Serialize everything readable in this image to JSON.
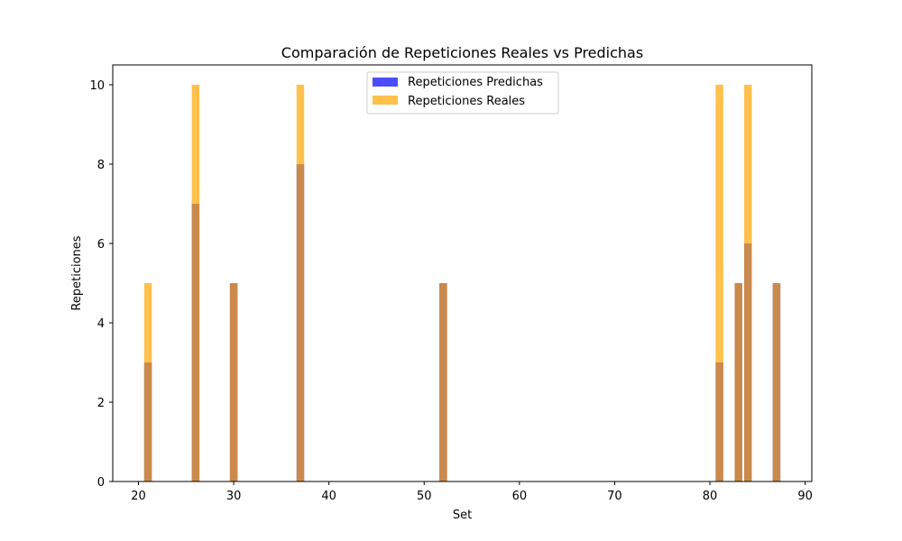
{
  "chart_data": {
    "type": "bar",
    "title": "Comparación de Repeticiones Reales vs Predichas",
    "xlabel": "Set",
    "ylabel": "Repeticiones",
    "xlim": [
      17.3,
      90.7
    ],
    "ylim": [
      0,
      10.5
    ],
    "xticks": [
      20,
      30,
      40,
      50,
      60,
      70,
      80,
      90
    ],
    "yticks": [
      0,
      2,
      4,
      6,
      8,
      10
    ],
    "grid": false,
    "legend_position": "top-center",
    "bar_width": 0.8,
    "x": [
      21,
      26,
      30,
      37,
      52,
      81,
      83,
      84,
      87
    ],
    "series": [
      {
        "name": "Repeticiones Predichas",
        "color": "#0000ff",
        "alpha": 0.7,
        "values": [
          3,
          7,
          5,
          8,
          5,
          3,
          5,
          6,
          5
        ]
      },
      {
        "name": "Repeticiones Reales",
        "color": "#ffa500",
        "alpha": 0.7,
        "values": [
          5,
          10,
          5,
          10,
          5,
          10,
          5,
          10,
          5
        ]
      }
    ]
  }
}
